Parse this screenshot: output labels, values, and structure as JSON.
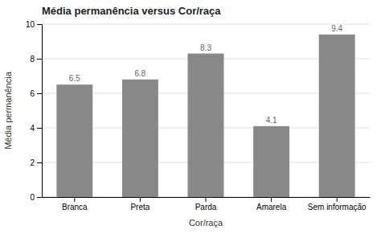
{
  "chart_data": {
    "type": "bar",
    "title": "Média permanência versus Cor/raça",
    "categories": [
      "Branca",
      "Preta",
      "Parda",
      "Amarela",
      "Sem informação"
    ],
    "values": [
      6.5,
      6.8,
      8.3,
      4.1,
      9.4
    ],
    "color": "#888888",
    "xlabel": "Cor/raça",
    "ylabel": "Média permanência",
    "ylim": [
      0,
      10
    ],
    "yticks": [
      0,
      2,
      4,
      6,
      8,
      10
    ],
    "grid": true,
    "data_labels": true
  }
}
